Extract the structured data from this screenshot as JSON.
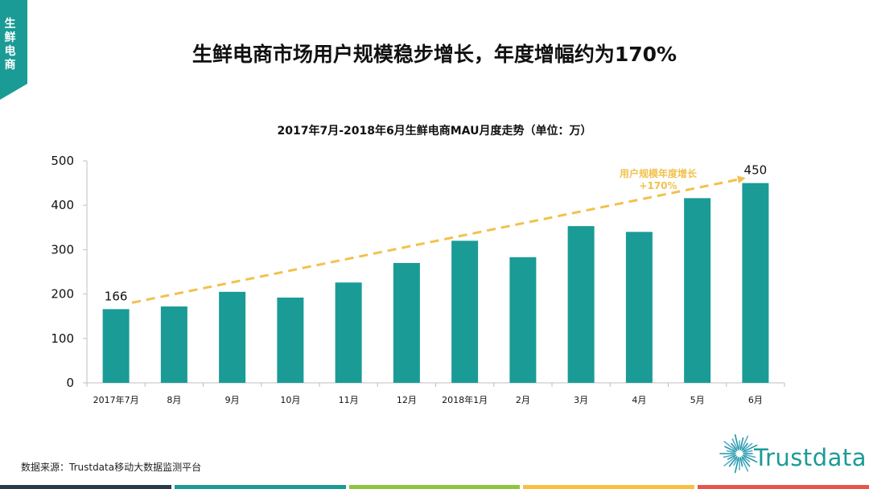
{
  "side_tab": {
    "label": "生鲜电商"
  },
  "header": {
    "title": "生鲜电商市场用户规模稳步增长，年度增幅约为170%"
  },
  "chart_data": {
    "type": "bar",
    "title": "2017年7月-2018年6月生鲜电商MAU月度走势（单位：万）",
    "categories": [
      "2017年7月",
      "8月",
      "9月",
      "10月",
      "11月",
      "12月",
      "2018年1月",
      "2月",
      "3月",
      "4月",
      "5月",
      "6月"
    ],
    "values": [
      166,
      172,
      205,
      192,
      226,
      270,
      320,
      283,
      353,
      340,
      416,
      450
    ],
    "ylim": [
      0,
      500
    ],
    "yticks": [
      0,
      100,
      200,
      300,
      400,
      500
    ],
    "data_labels": [
      {
        "index": 0,
        "text": "166"
      },
      {
        "index": 11,
        "text": "450"
      }
    ],
    "trend_annotation": {
      "line1": "用户规模年度增长",
      "line2": "+170%",
      "from_index": 0,
      "to_index": 11
    },
    "grid": false,
    "bar_color": "#1a9b96",
    "trend_color": "#f2c14e"
  },
  "footer": {
    "source": "数据来源：Trustdata移动大数据监测平台",
    "logo_text": "Trustdata",
    "bar_colors": [
      "#2b3a4a",
      "#1a9b96",
      "#8cc63f",
      "#f6c143",
      "#e8534a"
    ]
  }
}
